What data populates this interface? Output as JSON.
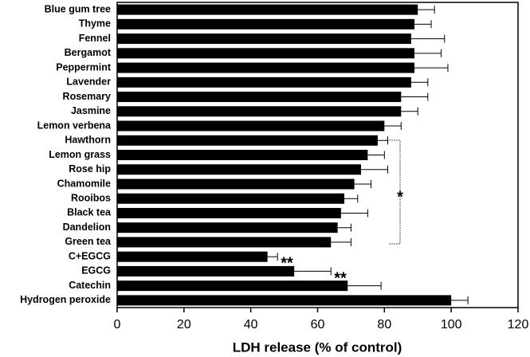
{
  "chart_data": {
    "type": "bar",
    "orientation": "horizontal",
    "x_label": "LDH release (% of control)",
    "categories": [
      "Blue gum tree",
      "Thyme",
      "Fennel",
      "Bergamot",
      "Peppermint",
      "Lavender",
      "Rosemary",
      "Jasmine",
      "Lemon verbena",
      "Hawthorn",
      "Lemon grass",
      "Rose hip",
      "Chamomile",
      "Rooibos",
      "Black tea",
      "Dandelion",
      "Green tea",
      "C+EGCG",
      "EGCG",
      "Catechin",
      "Hydrogen peroxide"
    ],
    "values": [
      90,
      89,
      88,
      89,
      89,
      88,
      85,
      85,
      80,
      78,
      75,
      73,
      71,
      68,
      67,
      66,
      64,
      45,
      53,
      69,
      100
    ],
    "errors": [
      5,
      5,
      10,
      8,
      10,
      5,
      8,
      5,
      5,
      3,
      5,
      8,
      5,
      4,
      8,
      4,
      6,
      3,
      11,
      10,
      5
    ],
    "color": "#000000",
    "xlim": [
      0,
      120
    ],
    "xticks": [
      0,
      20,
      40,
      60,
      80,
      100,
      120
    ],
    "annotations": [
      "*",
      "**",
      "**"
    ]
  }
}
